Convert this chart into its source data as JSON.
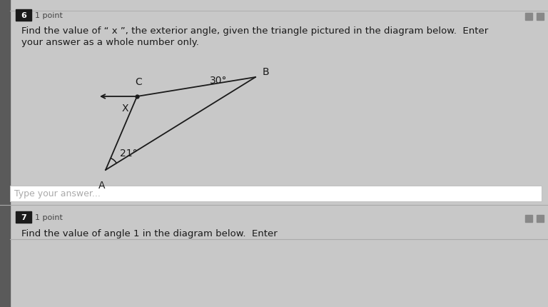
{
  "bg_color": "#c8c8c8",
  "question_number": "6",
  "points_label": "1 point",
  "question_text_line1": "Find the value of “ x ”, the exterior angle, given the triangle pictured in the diagram below.  Enter",
  "question_text_line2": "your answer as a whole number only.",
  "angle_B_label": "30°",
  "angle_A_label": "21°",
  "exterior_angle_label": "X",
  "vertex_A": "A",
  "vertex_B": "B",
  "vertex_C": "C",
  "line_color": "#1a1a1a",
  "text_color": "#1a1a1a",
  "answer_box_text": "Type your answer...",
  "next_question_number": "7",
  "next_points_label": "1 point",
  "next_question_text": "Find the value of angle 1 in the diagram below.  Enter",
  "badge_color": "#1a1a1a",
  "sidebar_color": "#5a5a5a"
}
